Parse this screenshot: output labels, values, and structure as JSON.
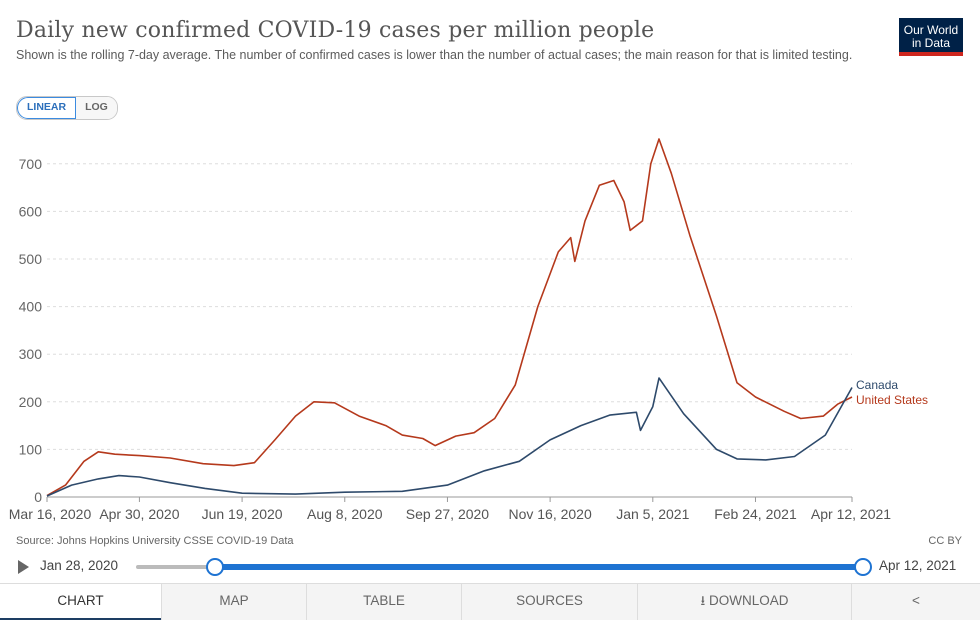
{
  "header": {
    "title": "Daily new confirmed COVID-19 cases per million people",
    "subtitle": "Shown is the rolling 7-day average. The number of confirmed cases is lower than the number of actual cases; the main reason for that is limited testing.",
    "logo_line1": "Our World",
    "logo_line2": "in Data"
  },
  "controls": {
    "linear_label": "LINEAR",
    "log_label": "LOG",
    "selected": "LINEAR"
  },
  "footer": {
    "source": "Source: Johns Hopkins University CSSE COVID-19 Data",
    "license": "CC BY"
  },
  "timeline": {
    "start": "Jan 28, 2020",
    "end": "Apr 12, 2021"
  },
  "tabs": [
    "CHART",
    "MAP",
    "TABLE",
    "SOURCES",
    "DOWNLOAD",
    ""
  ],
  "colors": {
    "canada": "#2e4a6b",
    "united_states": "#b5391c",
    "accent": "#1e73d2"
  },
  "chart_data": {
    "type": "line",
    "title": "Daily new confirmed COVID-19 cases per million people",
    "ylim": [
      0,
      750
    ],
    "yticks": [
      0,
      100,
      200,
      300,
      400,
      500,
      600,
      700
    ],
    "xtick_labels": [
      "Mar 16, 2020",
      "Apr 30, 2020",
      "Jun 19, 2020",
      "Aug 8, 2020",
      "Sep 27, 2020",
      "Nov 16, 2020",
      "Jan 5, 2021",
      "Feb 24, 2021",
      "Apr 12, 2021"
    ],
    "x_range": [
      "Mar 16, 2020",
      "Apr 12, 2021"
    ],
    "grid": true,
    "series": [
      {
        "name": "United States",
        "color": "#b5391c",
        "points": [
          [
            "2020-03-16",
            3
          ],
          [
            "2020-03-25",
            25
          ],
          [
            "2020-04-03",
            75
          ],
          [
            "2020-04-10",
            95
          ],
          [
            "2020-04-18",
            90
          ],
          [
            "2020-04-30",
            87
          ],
          [
            "2020-05-15",
            82
          ],
          [
            "2020-05-31",
            70
          ],
          [
            "2020-06-15",
            66
          ],
          [
            "2020-06-25",
            72
          ],
          [
            "2020-07-05",
            120
          ],
          [
            "2020-07-15",
            170
          ],
          [
            "2020-07-24",
            200
          ],
          [
            "2020-08-03",
            198
          ],
          [
            "2020-08-15",
            170
          ],
          [
            "2020-08-28",
            150
          ],
          [
            "2020-09-05",
            130
          ],
          [
            "2020-09-15",
            123
          ],
          [
            "2020-09-21",
            108
          ],
          [
            "2020-10-01",
            128
          ],
          [
            "2020-10-10",
            135
          ],
          [
            "2020-10-20",
            165
          ],
          [
            "2020-10-30",
            235
          ],
          [
            "2020-11-10",
            400
          ],
          [
            "2020-11-20",
            515
          ],
          [
            "2020-11-26",
            545
          ],
          [
            "2020-11-28",
            495
          ],
          [
            "2020-12-03",
            580
          ],
          [
            "2020-12-10",
            655
          ],
          [
            "2020-12-17",
            665
          ],
          [
            "2020-12-22",
            620
          ],
          [
            "2020-12-25",
            560
          ],
          [
            "2020-12-31",
            580
          ],
          [
            "2021-01-04",
            700
          ],
          [
            "2021-01-08",
            752
          ],
          [
            "2021-01-14",
            680
          ],
          [
            "2021-01-23",
            550
          ],
          [
            "2021-02-05",
            380
          ],
          [
            "2021-02-15",
            240
          ],
          [
            "2021-02-24",
            210
          ],
          [
            "2021-03-10",
            180
          ],
          [
            "2021-03-18",
            165
          ],
          [
            "2021-03-29",
            170
          ],
          [
            "2021-04-05",
            195
          ],
          [
            "2021-04-12",
            210
          ]
        ]
      },
      {
        "name": "Canada",
        "color": "#2e4a6b",
        "points": [
          [
            "2020-03-16",
            2
          ],
          [
            "2020-03-28",
            25
          ],
          [
            "2020-04-10",
            38
          ],
          [
            "2020-04-20",
            45
          ],
          [
            "2020-04-30",
            42
          ],
          [
            "2020-05-15",
            30
          ],
          [
            "2020-06-01",
            18
          ],
          [
            "2020-06-19",
            8
          ],
          [
            "2020-07-15",
            6
          ],
          [
            "2020-08-08",
            10
          ],
          [
            "2020-09-05",
            12
          ],
          [
            "2020-09-27",
            25
          ],
          [
            "2020-10-15",
            55
          ],
          [
            "2020-11-01",
            75
          ],
          [
            "2020-11-16",
            120
          ],
          [
            "2020-12-01",
            150
          ],
          [
            "2020-12-15",
            172
          ],
          [
            "2020-12-28",
            178
          ],
          [
            "2020-12-30",
            140
          ],
          [
            "2021-01-05",
            190
          ],
          [
            "2021-01-08",
            250
          ],
          [
            "2021-01-20",
            175
          ],
          [
            "2021-02-05",
            100
          ],
          [
            "2021-02-15",
            80
          ],
          [
            "2021-03-01",
            78
          ],
          [
            "2021-03-15",
            85
          ],
          [
            "2021-03-30",
            130
          ],
          [
            "2021-04-12",
            230
          ]
        ]
      }
    ]
  }
}
